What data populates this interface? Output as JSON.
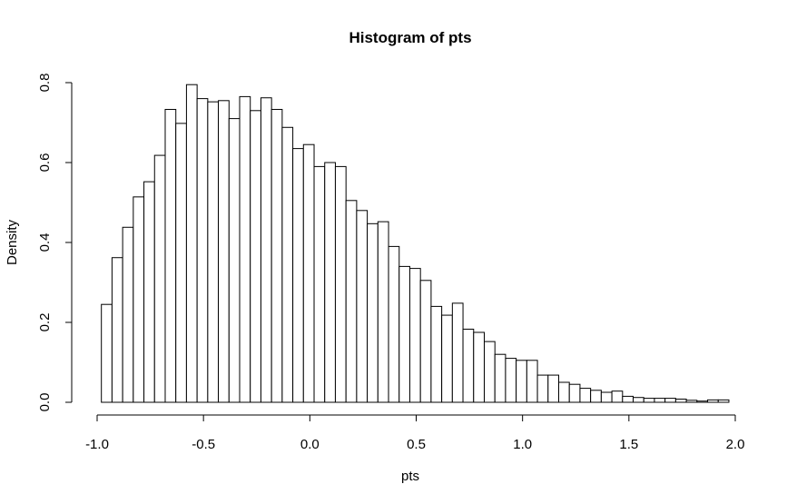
{
  "chart_data": {
    "type": "histogram",
    "title": "Histogram of pts",
    "xlabel": "pts",
    "ylabel": "Density",
    "bin_width": 0.05,
    "bin_start": -0.98,
    "densities": [
      0.245,
      0.362,
      0.438,
      0.514,
      0.552,
      0.618,
      0.733,
      0.698,
      0.795,
      0.76,
      0.752,
      0.755,
      0.71,
      0.765,
      0.73,
      0.762,
      0.733,
      0.688,
      0.635,
      0.645,
      0.59,
      0.6,
      0.59,
      0.505,
      0.48,
      0.447,
      0.452,
      0.39,
      0.34,
      0.335,
      0.305,
      0.24,
      0.218,
      0.248,
      0.183,
      0.175,
      0.152,
      0.12,
      0.11,
      0.105,
      0.105,
      0.068,
      0.068,
      0.05,
      0.045,
      0.035,
      0.03,
      0.025,
      0.028,
      0.015,
      0.012,
      0.01,
      0.01,
      0.01,
      0.008,
      0.005,
      0.003,
      0.006,
      0.006
    ],
    "xlim": [
      -1.0,
      2.0
    ],
    "ylim": [
      0,
      0.8
    ],
    "x_ticks": [
      -1.0,
      -0.5,
      0.0,
      0.5,
      1.0,
      1.5,
      2.0
    ],
    "x_tick_labels": [
      "-1.0",
      "-0.5",
      "0.0",
      "0.5",
      "1.0",
      "1.5",
      "2.0"
    ],
    "y_ticks": [
      0.0,
      0.2,
      0.4,
      0.6,
      0.8
    ],
    "y_tick_labels": [
      "0.0",
      "0.2",
      "0.4",
      "0.6",
      "0.8"
    ],
    "bar_fill": "#ffffff",
    "bar_stroke": "#000000",
    "grid": false,
    "legend": "none"
  }
}
